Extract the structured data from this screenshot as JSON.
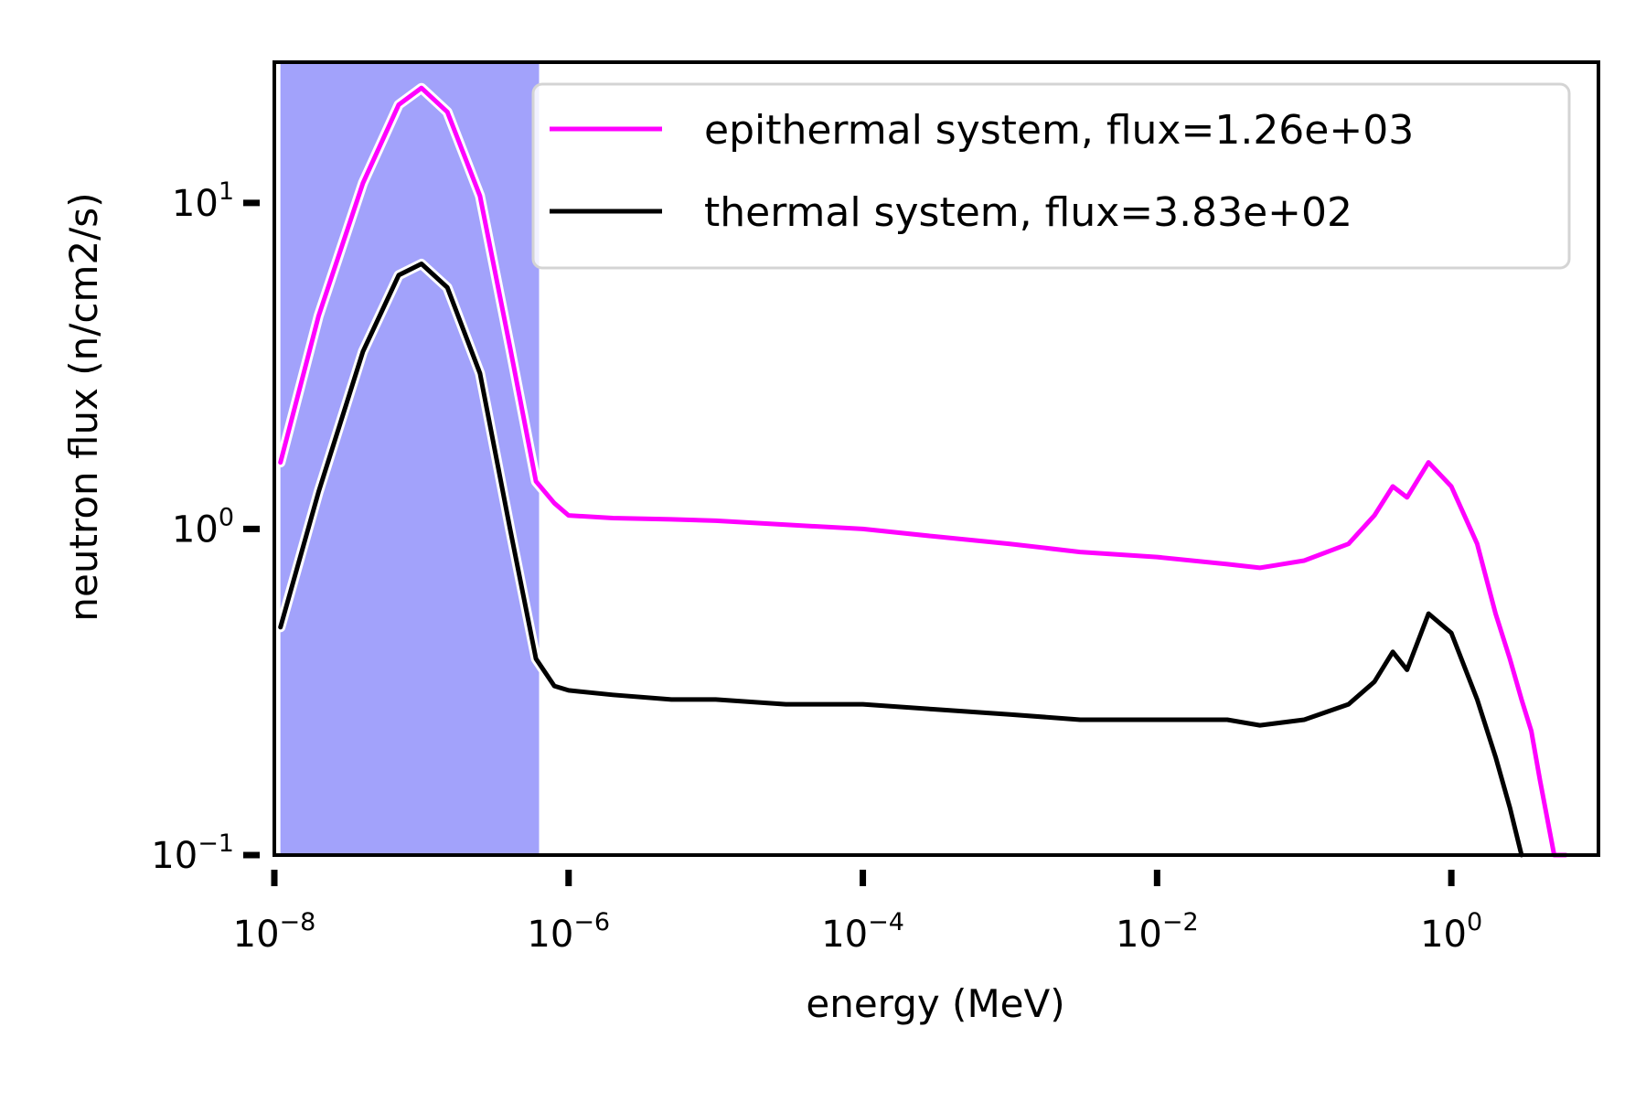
{
  "chart_data": {
    "type": "line",
    "title": "",
    "xlabel": "energy (MeV)",
    "ylabel": "neutron flux (n/cm2/s)",
    "xscale": "log",
    "yscale": "log",
    "xlim": [
      1e-08,
      10
    ],
    "ylim": [
      0.1,
      27
    ],
    "x_ticks": [
      {
        "base": "10",
        "exp": "−8",
        "value": 1e-08
      },
      {
        "base": "10",
        "exp": "−6",
        "value": 1e-06
      },
      {
        "base": "10",
        "exp": "−4",
        "value": 0.0001
      },
      {
        "base": "10",
        "exp": "−2",
        "value": 0.01
      },
      {
        "base": "10",
        "exp": "0",
        "value": 1
      }
    ],
    "y_ticks": [
      {
        "base": "10",
        "exp": "−1",
        "value": 0.1
      },
      {
        "base": "10",
        "exp": "0",
        "value": 1
      },
      {
        "base": "10",
        "exp": "1",
        "value": 10
      }
    ],
    "shaded_region": {
      "x_range": [
        1.1e-08,
        6.3e-07
      ],
      "color": "#a2a2fb"
    },
    "grid": false,
    "legend_position": "top-right",
    "series": [
      {
        "name": "epithermal system, flux=1.26e+03",
        "color": "#ff00ff",
        "x": [
          1.1e-08,
          2e-08,
          4e-08,
          7e-08,
          1e-07,
          1.5e-07,
          2.5e-07,
          4e-07,
          6e-07,
          8e-07,
          1e-06,
          2e-06,
          5e-06,
          1e-05,
          3e-05,
          0.0001,
          0.0003,
          0.001,
          0.003,
          0.01,
          0.03,
          0.05,
          0.1,
          0.2,
          0.3,
          0.4,
          0.5,
          0.7,
          1.0,
          1.5,
          2.0,
          2.5,
          3.0,
          3.5,
          4.0,
          5.0,
          6.0
        ],
        "y": [
          1.6,
          4.5,
          11.5,
          20,
          22.5,
          19,
          10.5,
          3.6,
          1.4,
          1.2,
          1.1,
          1.08,
          1.07,
          1.06,
          1.03,
          1.0,
          0.95,
          0.9,
          0.85,
          0.82,
          0.78,
          0.76,
          0.8,
          0.9,
          1.1,
          1.35,
          1.25,
          1.6,
          1.35,
          0.9,
          0.55,
          0.4,
          0.3,
          0.24,
          0.17,
          0.1,
          0.1
        ]
      },
      {
        "name": "thermal system, flux=3.83e+02",
        "color": "#000000",
        "x": [
          1.1e-08,
          2e-08,
          4e-08,
          7e-08,
          1e-07,
          1.5e-07,
          2.5e-07,
          4e-07,
          6e-07,
          8e-07,
          1e-06,
          2e-06,
          5e-06,
          1e-05,
          3e-05,
          0.0001,
          0.0003,
          0.001,
          0.003,
          0.01,
          0.03,
          0.05,
          0.1,
          0.2,
          0.3,
          0.4,
          0.5,
          0.7,
          1.0,
          1.5,
          2.0,
          2.5,
          3.0
        ],
        "y": [
          0.5,
          1.3,
          3.5,
          6.0,
          6.5,
          5.5,
          3.0,
          1.0,
          0.4,
          0.33,
          0.32,
          0.31,
          0.3,
          0.3,
          0.29,
          0.29,
          0.28,
          0.27,
          0.26,
          0.26,
          0.26,
          0.25,
          0.26,
          0.29,
          0.34,
          0.42,
          0.37,
          0.55,
          0.48,
          0.3,
          0.2,
          0.14,
          0.1
        ]
      }
    ]
  }
}
